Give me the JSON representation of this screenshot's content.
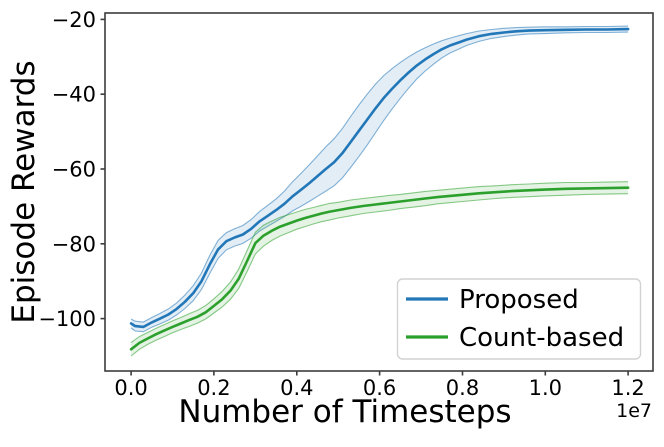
{
  "chart_data": {
    "type": "line",
    "title": "",
    "xlabel": "Number of Timesteps",
    "ylabel": "Episode Rewards",
    "x_scale_label": "1e7",
    "xlim": [
      -0.063,
      1.26
    ],
    "ylim": [
      -114.0,
      -18.3
    ],
    "grid": false,
    "xticks": {
      "values": [
        0.0,
        0.2,
        0.4,
        0.6,
        0.8,
        1.0,
        1.2
      ],
      "labels": [
        "0.0",
        "0.2",
        "0.4",
        "0.6",
        "0.8",
        "1.0",
        "1.2"
      ]
    },
    "yticks": {
      "values": [
        -20,
        -40,
        -60,
        -80,
        -100
      ],
      "labels": [
        "−20",
        "−40",
        "−60",
        "−80",
        "−100"
      ]
    },
    "legend": {
      "position": "lower right",
      "entries": [
        "Proposed",
        "Count-based"
      ]
    },
    "axis_color": "#3c3c3c",
    "series": [
      {
        "name": "Proposed",
        "color": "#2277b8",
        "band_fill_opacity": 0.13,
        "x": [
          0.0,
          0.01,
          0.03,
          0.05,
          0.07,
          0.09,
          0.11,
          0.13,
          0.15,
          0.17,
          0.19,
          0.21,
          0.23,
          0.25,
          0.27,
          0.29,
          0.31,
          0.33,
          0.35,
          0.37,
          0.39,
          0.41,
          0.43,
          0.45,
          0.47,
          0.49,
          0.51,
          0.53,
          0.55,
          0.57,
          0.59,
          0.61,
          0.63,
          0.65,
          0.67,
          0.69,
          0.71,
          0.73,
          0.75,
          0.77,
          0.79,
          0.81,
          0.84,
          0.87,
          0.9,
          0.93,
          0.96,
          1.0,
          1.05,
          1.1,
          1.15,
          1.2
        ],
        "y": [
          -101.3,
          -102.0,
          -102.2,
          -101.0,
          -100.0,
          -98.9,
          -97.4,
          -95.5,
          -93.2,
          -90.0,
          -85.5,
          -81.5,
          -79.3,
          -78.3,
          -77.5,
          -76.0,
          -74.0,
          -72.5,
          -71.0,
          -69.3,
          -67.3,
          -65.6,
          -63.8,
          -61.9,
          -60.0,
          -58.2,
          -55.8,
          -52.8,
          -49.8,
          -46.8,
          -43.8,
          -41.0,
          -38.6,
          -36.3,
          -34.2,
          -32.3,
          -30.7,
          -29.3,
          -28.0,
          -27.0,
          -26.2,
          -25.4,
          -24.5,
          -23.9,
          -23.5,
          -23.2,
          -23.0,
          -22.9,
          -22.8,
          -22.7,
          -22.7,
          -22.6
        ],
        "band_upper": [
          -100.1,
          -100.7,
          -100.9,
          -99.7,
          -98.6,
          -97.4,
          -95.8,
          -93.7,
          -91.2,
          -87.8,
          -83.1,
          -79.1,
          -77.0,
          -76.0,
          -75.1,
          -73.5,
          -71.4,
          -69.7,
          -68.0,
          -65.9,
          -63.4,
          -61.2,
          -58.9,
          -56.5,
          -54.1,
          -51.9,
          -49.2,
          -46.0,
          -42.9,
          -40.0,
          -37.3,
          -35.0,
          -33.2,
          -31.5,
          -30.0,
          -28.7,
          -27.6,
          -26.6,
          -25.7,
          -25.0,
          -24.4,
          -23.8,
          -23.1,
          -22.7,
          -22.4,
          -22.2,
          -22.1,
          -22.0,
          -22.0,
          -21.9,
          -21.9,
          -21.8
        ],
        "band_lower": [
          -102.5,
          -103.3,
          -103.5,
          -102.3,
          -101.4,
          -100.4,
          -99.0,
          -97.3,
          -95.2,
          -92.2,
          -87.9,
          -83.9,
          -81.6,
          -80.6,
          -79.9,
          -78.5,
          -76.6,
          -75.3,
          -74.0,
          -72.7,
          -71.2,
          -70.0,
          -68.7,
          -67.3,
          -65.9,
          -64.5,
          -62.4,
          -59.6,
          -56.7,
          -53.6,
          -50.3,
          -47.0,
          -44.0,
          -41.1,
          -38.4,
          -35.9,
          -33.8,
          -32.0,
          -30.3,
          -29.0,
          -28.0,
          -27.0,
          -25.9,
          -25.1,
          -24.6,
          -24.2,
          -23.9,
          -23.8,
          -23.6,
          -23.5,
          -23.5,
          -23.4
        ]
      },
      {
        "name": "Count-based",
        "color": "#2ca02c",
        "band_fill_opacity": 0.13,
        "x": [
          0.0,
          0.02,
          0.04,
          0.06,
          0.08,
          0.1,
          0.12,
          0.14,
          0.16,
          0.18,
          0.2,
          0.22,
          0.24,
          0.26,
          0.28,
          0.3,
          0.32,
          0.34,
          0.36,
          0.38,
          0.4,
          0.42,
          0.44,
          0.46,
          0.48,
          0.5,
          0.53,
          0.56,
          0.59,
          0.62,
          0.65,
          0.68,
          0.71,
          0.74,
          0.77,
          0.8,
          0.84,
          0.88,
          0.92,
          0.96,
          1.0,
          1.05,
          1.1,
          1.15,
          1.2
        ],
        "y": [
          -108.2,
          -106.5,
          -105.3,
          -104.2,
          -103.2,
          -102.2,
          -101.3,
          -100.4,
          -99.5,
          -98.3,
          -96.6,
          -94.8,
          -92.5,
          -89.3,
          -84.6,
          -79.8,
          -77.8,
          -76.5,
          -75.4,
          -74.6,
          -73.8,
          -73.1,
          -72.5,
          -71.9,
          -71.4,
          -71.0,
          -70.4,
          -69.9,
          -69.5,
          -69.1,
          -68.7,
          -68.3,
          -67.9,
          -67.5,
          -67.2,
          -66.9,
          -66.5,
          -66.2,
          -65.9,
          -65.7,
          -65.5,
          -65.3,
          -65.2,
          -65.1,
          -65.0
        ],
        "band_upper": [
          -106.4,
          -104.8,
          -103.7,
          -102.6,
          -101.6,
          -100.6,
          -99.7,
          -98.7,
          -97.8,
          -96.5,
          -94.7,
          -92.7,
          -90.2,
          -86.7,
          -81.8,
          -76.9,
          -75.0,
          -73.9,
          -72.9,
          -72.2,
          -71.5,
          -70.8,
          -70.3,
          -69.7,
          -69.2,
          -68.9,
          -68.3,
          -67.9,
          -67.5,
          -67.1,
          -66.8,
          -66.4,
          -66.0,
          -65.7,
          -65.4,
          -65.1,
          -64.7,
          -64.5,
          -64.2,
          -64.0,
          -63.8,
          -63.6,
          -63.6,
          -63.5,
          -63.4
        ],
        "band_lower": [
          -110.0,
          -108.2,
          -106.9,
          -105.8,
          -104.8,
          -103.8,
          -102.9,
          -102.1,
          -101.2,
          -100.1,
          -98.5,
          -96.9,
          -94.8,
          -91.9,
          -87.4,
          -82.7,
          -80.6,
          -79.1,
          -77.9,
          -77.0,
          -76.1,
          -75.4,
          -74.7,
          -74.1,
          -73.6,
          -73.1,
          -72.5,
          -71.9,
          -71.5,
          -71.1,
          -70.6,
          -70.2,
          -69.8,
          -69.3,
          -69.0,
          -68.7,
          -68.3,
          -67.9,
          -67.6,
          -67.4,
          -67.2,
          -67.0,
          -66.8,
          -66.7,
          -66.6
        ]
      }
    ]
  }
}
